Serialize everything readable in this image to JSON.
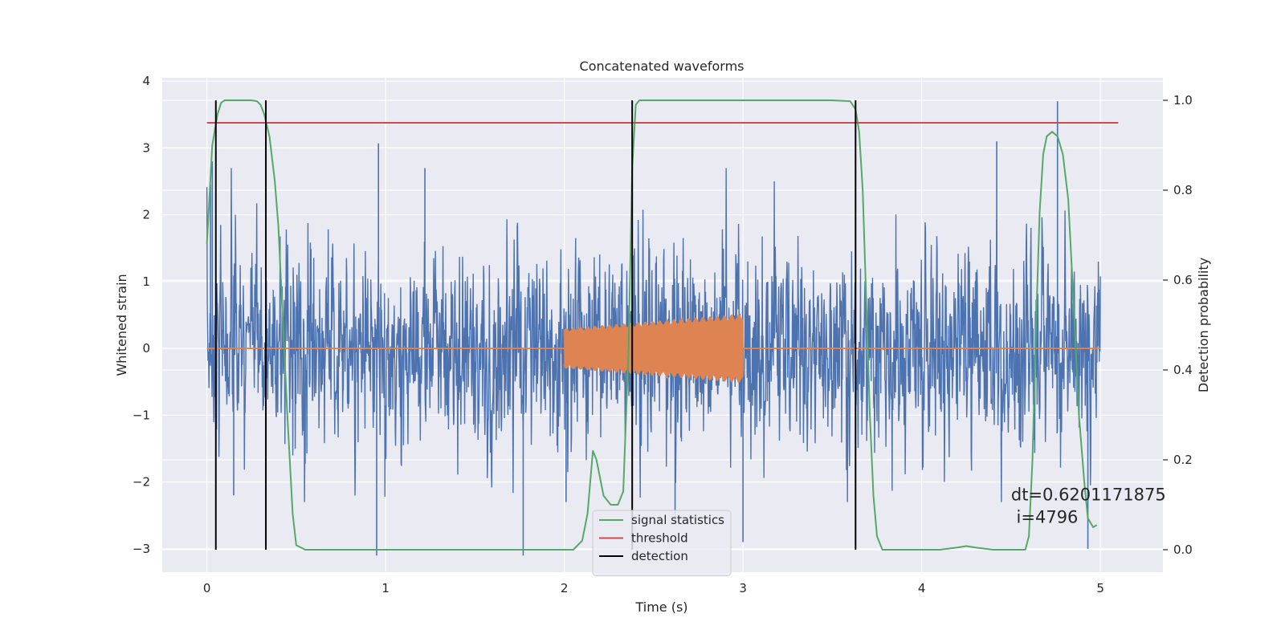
{
  "chart_data": {
    "type": "line",
    "title": "Concatenated waveforms",
    "xlabel": "Time (s)",
    "ylabel": "Whitened strain",
    "y2label": "Detection probability",
    "xlim": [
      -0.25,
      5.35
    ],
    "ylim": [
      -3.35,
      4.05
    ],
    "y2lim": [
      -0.05,
      1.05
    ],
    "xticks": [
      0,
      1,
      2,
      3,
      4,
      5
    ],
    "yticks": [
      -3,
      -2,
      -1,
      0,
      1,
      2,
      3,
      4
    ],
    "y2ticks": [
      0.0,
      0.2,
      0.4,
      0.6,
      0.8,
      1.0
    ],
    "grid": true,
    "legend_position": "bottom-center",
    "series": [
      {
        "name": "",
        "axis": "left",
        "color": "#4c72b0",
        "kind": "noise",
        "x_range": [
          0,
          5
        ],
        "typical_envelope": [
          -2.3,
          2.7
        ],
        "peaks": [
          [
            0.02,
            2.45
          ],
          [
            0.03,
            2.8
          ],
          [
            0.15,
            -2.2
          ],
          [
            0.95,
            -3.1
          ],
          [
            0.96,
            3.07
          ],
          [
            1.22,
            2.7
          ],
          [
            1.77,
            -3.1
          ],
          [
            2.01,
            -2.3
          ],
          [
            2.62,
            -2.6
          ],
          [
            3.0,
            -2.9
          ],
          [
            4.42,
            3.1
          ],
          [
            4.76,
            3.7
          ],
          [
            4.93,
            -3.0
          ]
        ]
      },
      {
        "name": "",
        "axis": "left",
        "color": "#dd8452",
        "kind": "chirp",
        "x_range": [
          2.0,
          3.0
        ],
        "amplitude_start": 0.3,
        "amplitude_end": 0.52,
        "baseline": 0
      },
      {
        "name": "signal statistics",
        "axis": "right",
        "color": "#55a868",
        "x": [
          0.0,
          0.03,
          0.06,
          0.08,
          0.1,
          0.15,
          0.2,
          0.25,
          0.28,
          0.3,
          0.32,
          0.35,
          0.38,
          0.4,
          0.42,
          0.45,
          0.48,
          0.5,
          0.55,
          1.0,
          2.05,
          2.1,
          2.13,
          2.16,
          2.18,
          2.22,
          2.26,
          2.3,
          2.33,
          2.36,
          2.38,
          2.4,
          2.42,
          2.44,
          2.6,
          3.5,
          3.6,
          3.63,
          3.65,
          3.67,
          3.69,
          3.71,
          3.73,
          3.75,
          3.78,
          3.85,
          4.0,
          4.1,
          4.2,
          4.25,
          4.3,
          4.4,
          4.5,
          4.58,
          4.6,
          4.62,
          4.64,
          4.66,
          4.68,
          4.7,
          4.73,
          4.76,
          4.79,
          4.82,
          4.85,
          4.88,
          4.91,
          4.93,
          4.96,
          4.98
        ],
        "values": [
          0.68,
          0.9,
          0.97,
          0.995,
          1.0,
          1.0,
          1.0,
          1.0,
          0.998,
          0.99,
          0.97,
          0.92,
          0.82,
          0.72,
          0.55,
          0.3,
          0.08,
          0.01,
          0.0,
          0.0,
          0.0,
          0.02,
          0.08,
          0.22,
          0.2,
          0.12,
          0.1,
          0.1,
          0.13,
          0.45,
          0.85,
          0.99,
          1.0,
          1.0,
          1.0,
          1.0,
          0.998,
          0.98,
          0.93,
          0.8,
          0.55,
          0.3,
          0.12,
          0.03,
          0.0,
          0.0,
          0.0,
          0.0,
          0.005,
          0.008,
          0.005,
          0.0,
          0.0,
          0.0,
          0.03,
          0.2,
          0.5,
          0.75,
          0.88,
          0.92,
          0.93,
          0.92,
          0.88,
          0.78,
          0.55,
          0.3,
          0.15,
          0.07,
          0.05,
          0.055
        ]
      },
      {
        "name": "threshold",
        "axis": "right",
        "color": "#c44e52",
        "x": [
          0.0,
          5.1
        ],
        "values": [
          0.95,
          0.95
        ]
      },
      {
        "name": "detection",
        "axis": "right",
        "color": "#000000",
        "kind": "vlines",
        "x": [
          0.05,
          0.33,
          2.38,
          3.63
        ],
        "ymin": 0.0,
        "ymax": 1.0
      }
    ],
    "annotations": [
      {
        "text": "dt=0.6201171875",
        "x": 4.5,
        "y": 0.11
      },
      {
        "text": "i=4796",
        "x": 4.53,
        "y": 0.06
      }
    ]
  }
}
